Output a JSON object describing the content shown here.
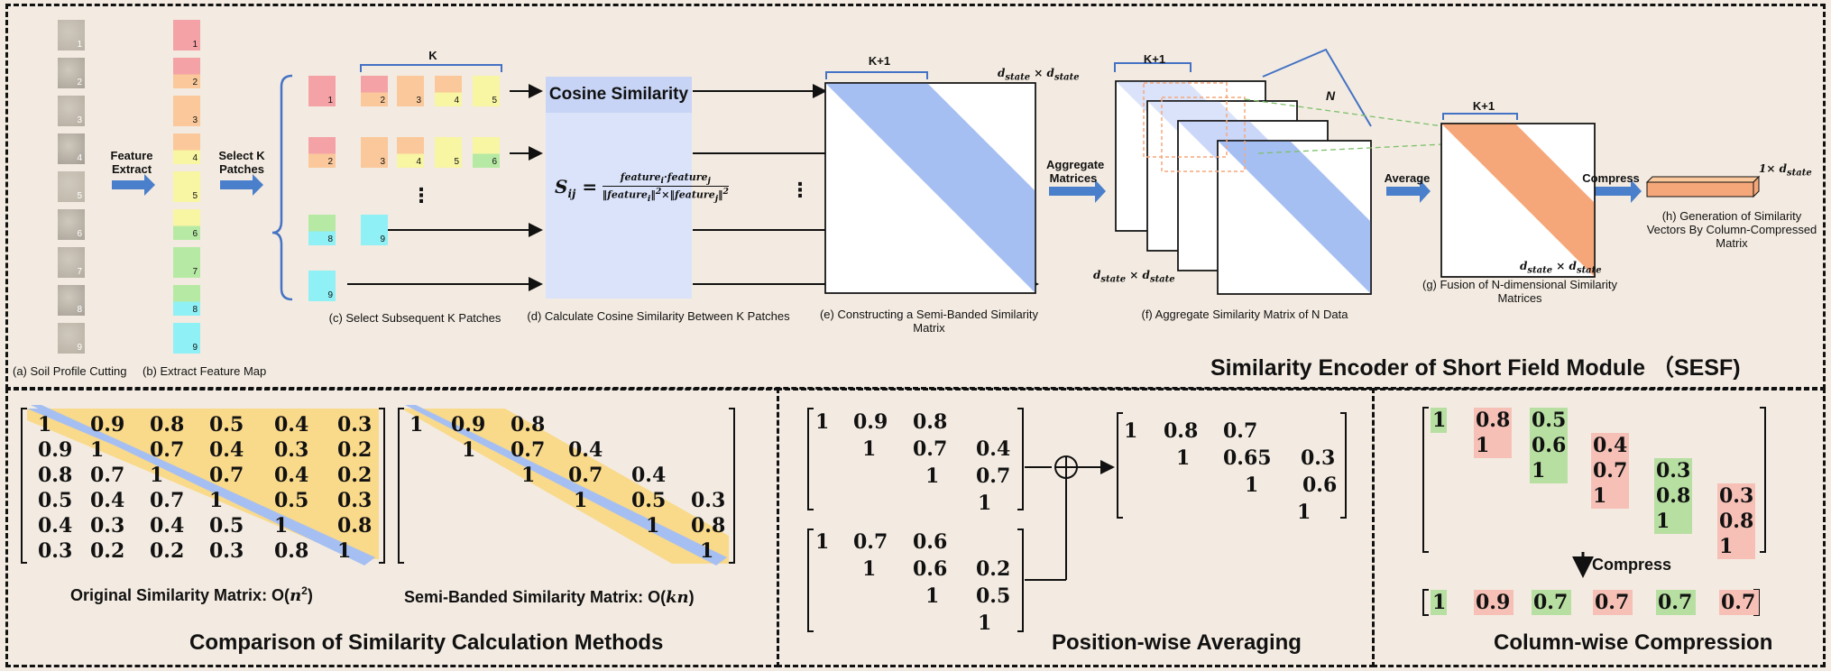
{
  "top": {
    "title": "Similarity Encoder of Short Field Module （SESF)",
    "captions": {
      "a": "(a) Soil Profile Cutting",
      "b": "(b) Extract Feature Map",
      "c": "(c) Select Subsequent K Patches",
      "d": "(d) Calculate  Cosine Similarity Between K Patches",
      "e": "(e) Constructing a Semi-Banded Similarity Matrix",
      "f": "(f) Aggregate Similarity Matrix of N Data",
      "g": "(g) Fusion of N-dimensional Similarity Matrices",
      "h": "(h) Generation of Similarity Vectors By Column-Compressed Matrix"
    },
    "arrows": {
      "feature_extract": "Feature Extract",
      "select_k": "Select K Patches",
      "aggregate": "Aggregate Matrices",
      "average": "Average",
      "compress": "Compress"
    },
    "k_label": "K",
    "k1_label": "K+1",
    "n_label": "N",
    "cosine_title": "Cosine Similarity",
    "ellipsis": "⋮",
    "dim_label": "d",
    "dim_sub": "state",
    "times": "×",
    "one_times": "1×",
    "patch_numbers": [
      "1",
      "2",
      "3",
      "4",
      "5",
      "6",
      "7",
      "8",
      "9"
    ],
    "colors": {
      "blue": "#a6bff2",
      "orange": "#f6a77a",
      "peach": "#fac89a",
      "pink": "#f4a2a6",
      "yellow": "#f8f5a3",
      "green": "#b6eaa4",
      "cyan": "#8ff0f5",
      "cosine_box": "#dae3fa"
    }
  },
  "bottom": {
    "comparison": {
      "title": "Comparison of Similarity Calculation Methods",
      "original_label": "Original Similarity Matrix: O(",
      "original_math": "n",
      "original_sup": "2",
      "semi_label": "Semi-Banded Similarity Matrix: O(",
      "semi_math": "kn",
      "close": ")",
      "full_matrix": [
        [
          "1",
          "0.9",
          "0.8",
          "0.5",
          "0.4",
          "0.3"
        ],
        [
          "0.9",
          "1",
          "0.7",
          "0.4",
          "0.3",
          "0.2"
        ],
        [
          "0.8",
          "0.7",
          "1",
          "0.7",
          "0.4",
          "0.2"
        ],
        [
          "0.5",
          "0.4",
          "0.7",
          "1",
          "0.5",
          "0.3"
        ],
        [
          "0.4",
          "0.3",
          "0.4",
          "0.5",
          "1",
          "0.8"
        ],
        [
          "0.3",
          "0.2",
          "0.2",
          "0.3",
          "0.8",
          "1"
        ]
      ],
      "semi_matrix": [
        [
          "1",
          "0.9",
          "0.8"
        ],
        [
          "1",
          "0.7",
          "0.4"
        ],
        [
          "1",
          "0.7",
          "0.4"
        ],
        [
          "1",
          "0.5",
          "0.3"
        ],
        [
          "1",
          "0.8"
        ],
        [
          "1"
        ]
      ]
    },
    "averaging": {
      "title": "Position-wise Averaging",
      "plus": "⊕",
      "m1": [
        [
          "1",
          "0.9",
          "0.8"
        ],
        [
          "1",
          "0.7",
          "0.4"
        ],
        [
          "1",
          "0.7"
        ],
        [
          "1"
        ]
      ],
      "m2": [
        [
          "1",
          "0.7",
          "0.6"
        ],
        [
          "1",
          "0.6",
          "0.2"
        ],
        [
          "1",
          "0.5"
        ],
        [
          "1"
        ]
      ],
      "m3": [
        [
          "1",
          "0.8",
          "0.7"
        ],
        [
          "1",
          "0.65",
          "0.3"
        ],
        [
          "1",
          "0.6"
        ],
        [
          "1"
        ]
      ]
    },
    "compression": {
      "title": "Column-wise Compression",
      "compress_label": "Compress",
      "columns": [
        [
          "1"
        ],
        [
          "0.8",
          "1"
        ],
        [
          "0.5",
          "0.6",
          "1"
        ],
        [
          "0.4",
          "0.7",
          "1"
        ],
        [
          "0.3",
          "0.8",
          "1"
        ],
        [
          "0.3",
          "0.8",
          "1"
        ]
      ],
      "vector": [
        "1",
        "0.9",
        "0.7",
        "0.7",
        "0.7",
        "0.7"
      ]
    }
  }
}
